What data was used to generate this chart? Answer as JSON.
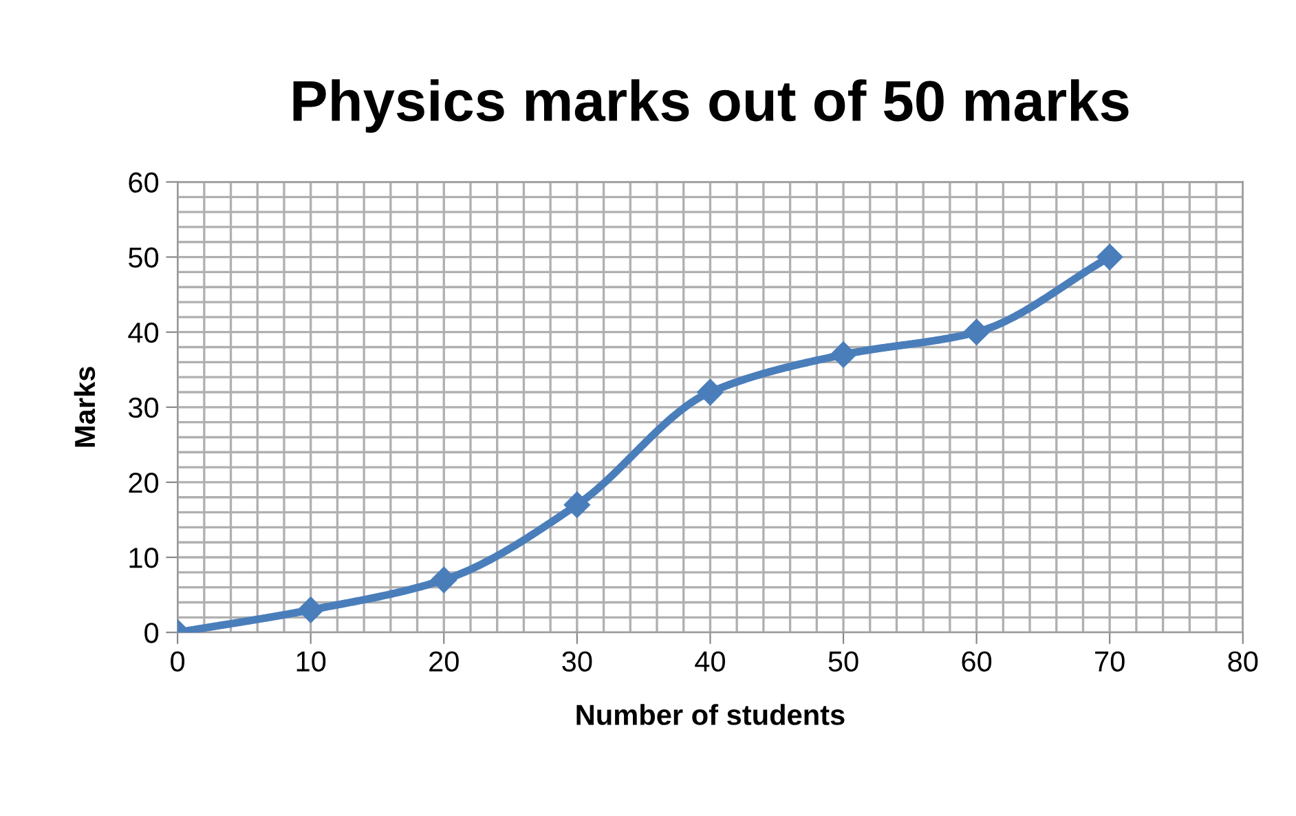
{
  "chart_data": {
    "type": "line",
    "title": "Physics marks out of 50 marks",
    "xlabel": "Number of students",
    "ylabel": "Marks",
    "x": [
      0,
      10,
      20,
      30,
      40,
      50,
      60,
      70
    ],
    "series": [
      {
        "color": "#4a7ebb",
        "values": [
          0,
          3,
          7,
          17,
          32,
          37,
          40,
          50
        ]
      }
    ],
    "xlim": [
      0,
      80
    ],
    "xticks": [
      0,
      10,
      20,
      30,
      40,
      50,
      60,
      70,
      80
    ],
    "ylim": [
      0,
      60
    ],
    "yticks": [
      0,
      10,
      20,
      30,
      40,
      50,
      60
    ],
    "grid": true,
    "marker": "diamond",
    "line_style": "solid",
    "legend": false
  }
}
